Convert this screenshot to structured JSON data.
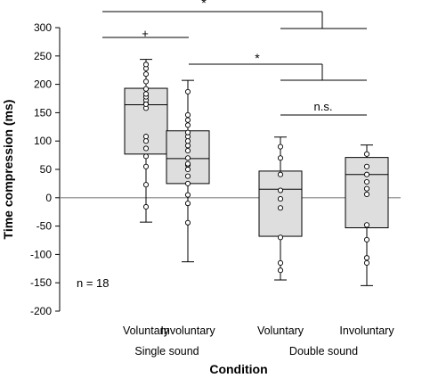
{
  "chart_data": {
    "type": "box",
    "xlabel": "Condition",
    "ylabel": "Time compression (ms)",
    "ylim": [
      -200,
      300
    ],
    "yticks": [
      -200,
      -150,
      -100,
      -50,
      0,
      50,
      100,
      150,
      200,
      250,
      300
    ],
    "categories": [
      "Voluntary",
      "Involuntary",
      "Voluntary",
      "Involuntary"
    ],
    "groups": [
      {
        "label": "Single sound",
        "categories": [
          0,
          1
        ]
      },
      {
        "label": "Double sound",
        "categories": [
          2,
          3
        ]
      }
    ],
    "annotation": "n = 18",
    "boxes": [
      {
        "category": "Voluntary",
        "group": "Single sound",
        "whisker_low": -43,
        "q1": 77,
        "median": 164,
        "q3": 193,
        "whisker_high": 244,
        "points": [
          -16,
          23,
          55,
          73,
          87,
          100,
          108,
          158,
          166,
          172,
          178,
          183,
          192,
          205,
          218,
          228,
          235,
          165
        ]
      },
      {
        "category": "Involuntary",
        "group": "Single sound",
        "whisker_low": -113,
        "q1": 25,
        "median": 69,
        "q3": 118,
        "whisker_high": 207,
        "points": [
          -44,
          -10,
          5,
          25,
          38,
          50,
          58,
          70,
          83,
          92,
          100,
          108,
          115,
          128,
          137,
          146,
          187,
          60
        ]
      },
      {
        "category": "Voluntary",
        "group": "Double sound",
        "whisker_low": -145,
        "q1": -68,
        "median": 15,
        "q3": 47,
        "whisker_high": 107,
        "points": [
          -128,
          -115,
          -70,
          -18,
          -2,
          13,
          41,
          90,
          70
        ]
      },
      {
        "category": "Involuntary",
        "group": "Double sound",
        "whisker_low": -155,
        "q1": -53,
        "median": 41,
        "q3": 71,
        "whisker_high": 93,
        "points": [
          -115,
          -106,
          -74,
          -48,
          6,
          16,
          28,
          41,
          55,
          77
        ]
      }
    ],
    "significance": [
      {
        "label": "*",
        "from": "Single sound",
        "to": "Double sound"
      },
      {
        "label": "+",
        "from": "Voluntary (Single sound)",
        "to": "Involuntary (Single sound)"
      },
      {
        "label": "*",
        "from": "Involuntary (Single sound)",
        "to": "Double sound"
      },
      {
        "label": "n.s.",
        "from": "Voluntary (Double sound)",
        "to": "Involuntary (Double sound)"
      }
    ],
    "colors": {
      "box_fill": "#dedede",
      "stroke": "#000000",
      "point_fill": "#ffffff",
      "zero_line": "#808080"
    }
  }
}
